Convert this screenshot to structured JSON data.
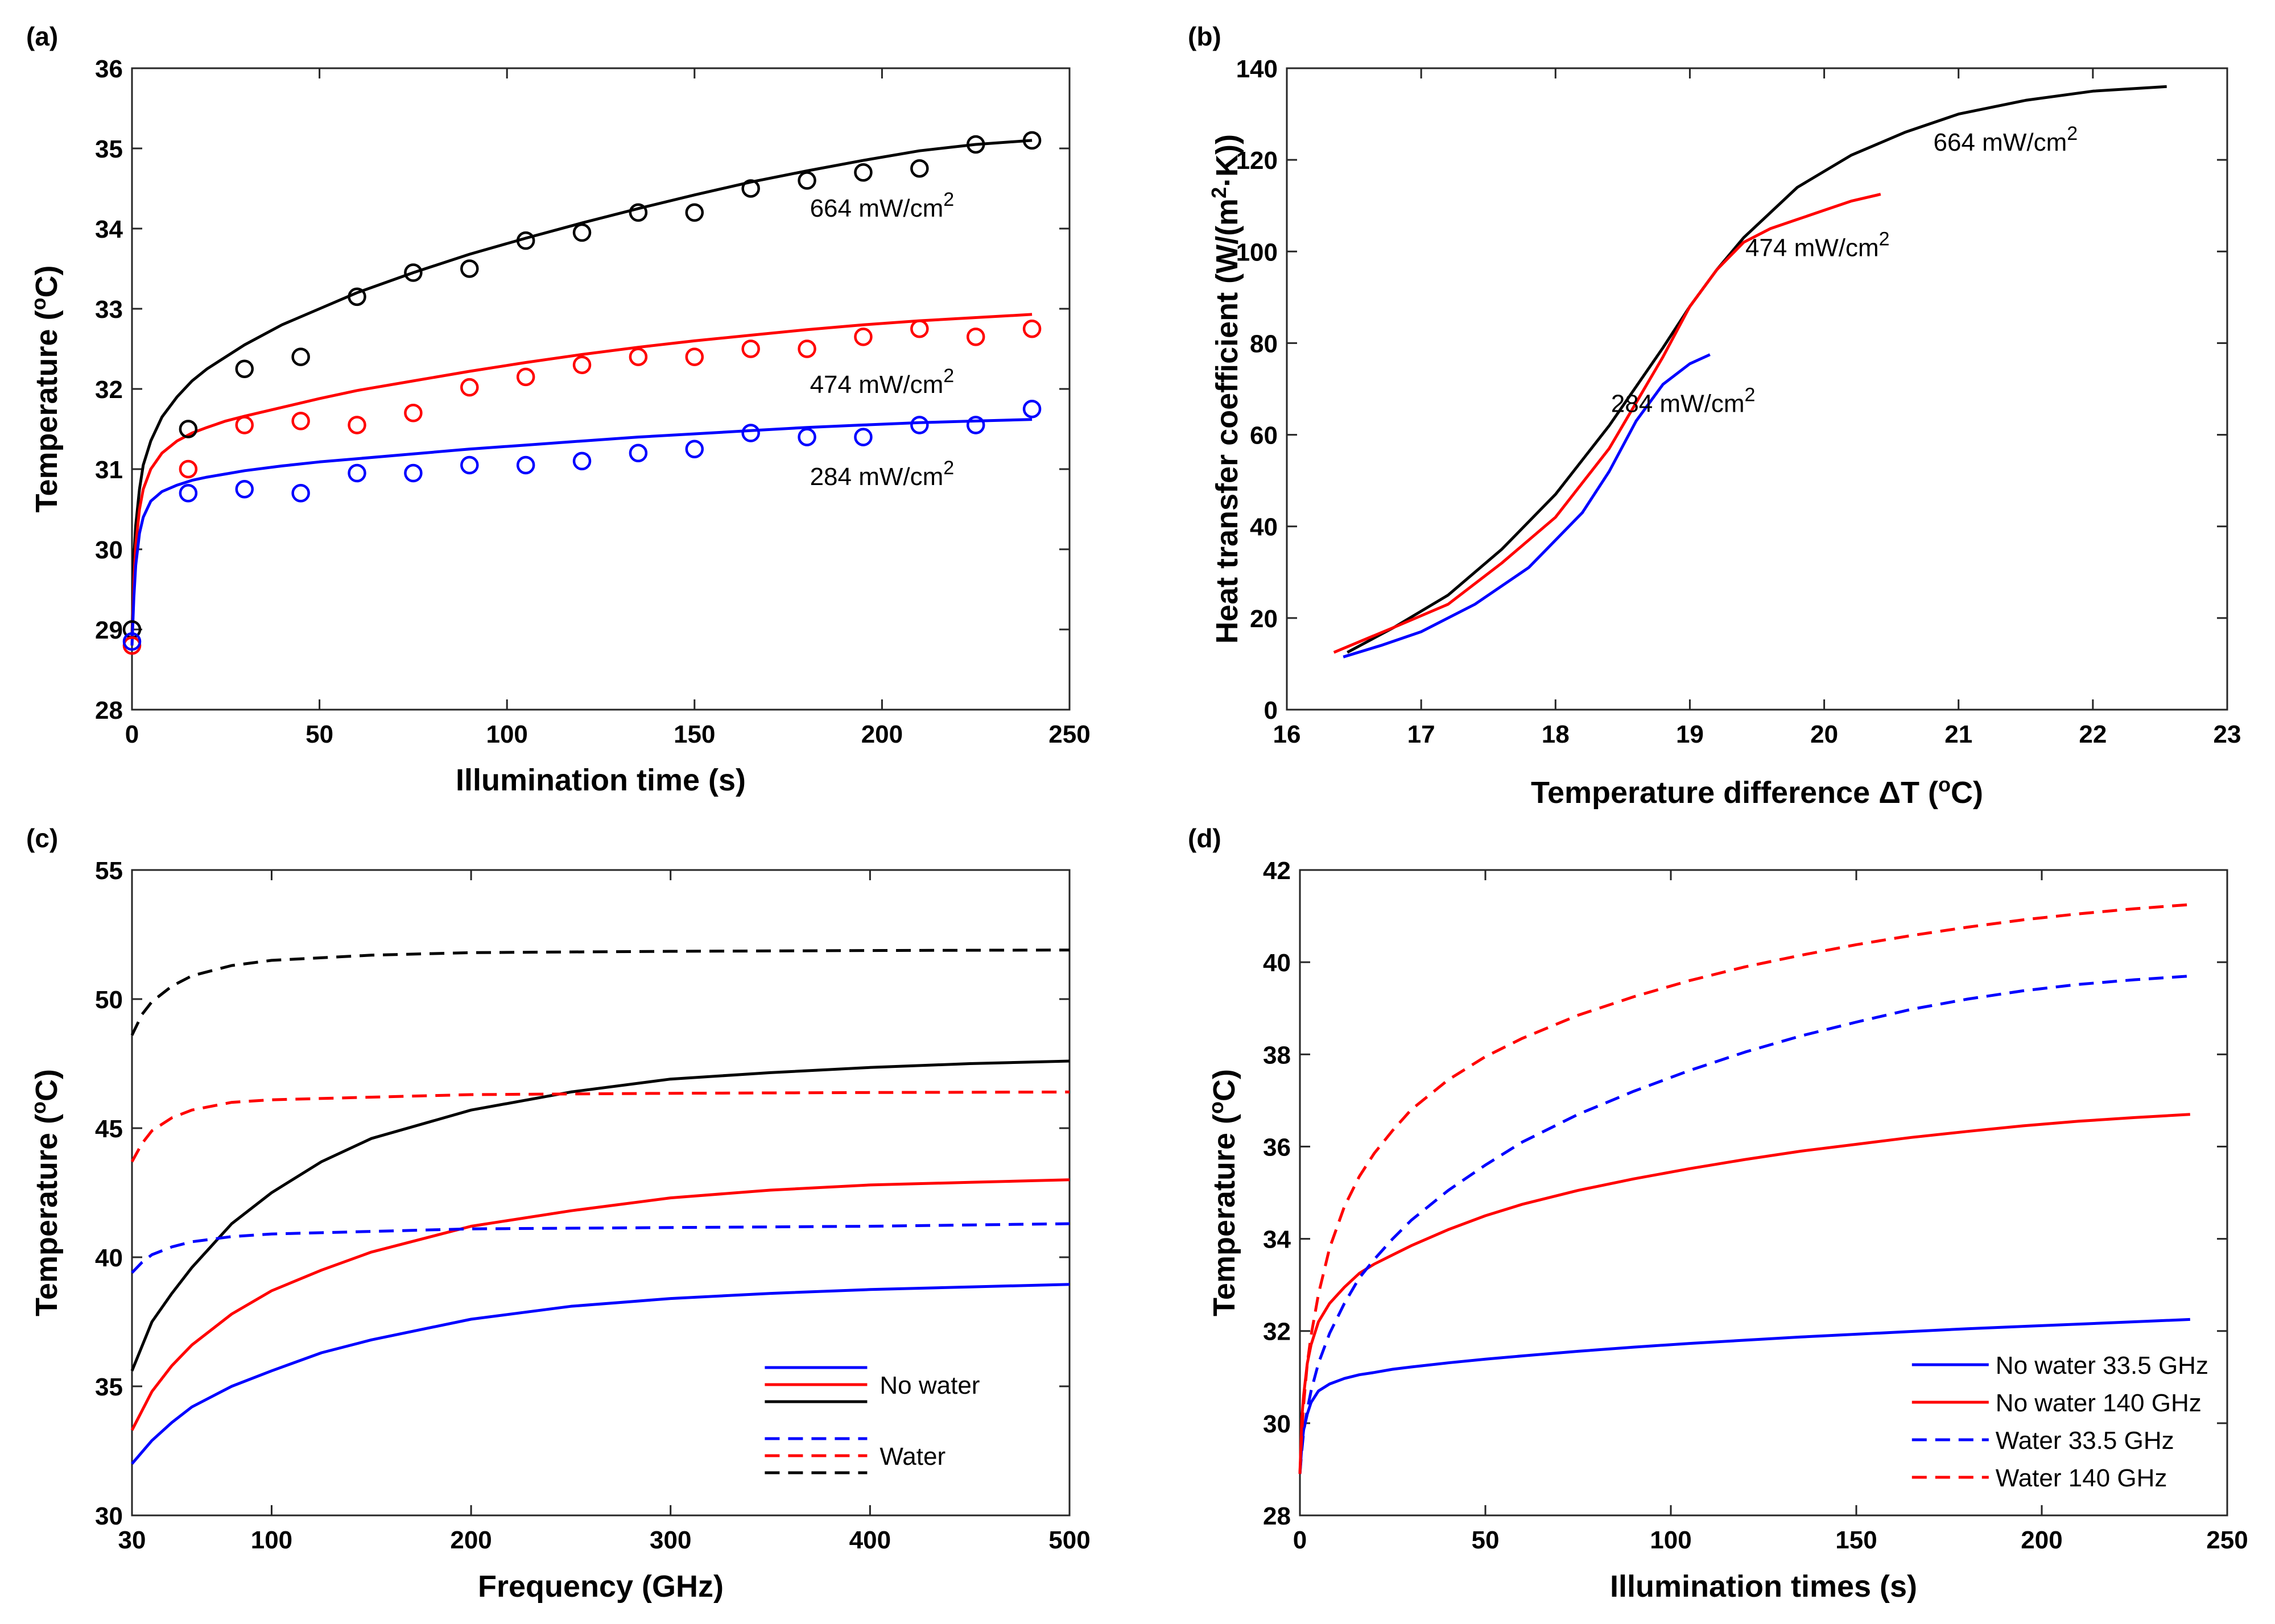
{
  "chart_data": [
    {
      "panel": "(a)",
      "type": "line",
      "xlabel": "Illumination time (s)",
      "ylabel_main": "Temperature (",
      "ylabel_sup": "o",
      "ylabel_tail": "C)",
      "xlim": [
        0,
        250
      ],
      "ylim": [
        28,
        36
      ],
      "xticks": [
        0,
        50,
        100,
        150,
        200,
        250
      ],
      "yticks": [
        28,
        29,
        30,
        31,
        32,
        33,
        34,
        35,
        36
      ],
      "series": [
        {
          "name": "664 mW/cm2",
          "color": "#000000",
          "dash": "solid",
          "x": [
            0,
            0.5,
            1,
            2,
            3,
            5,
            8,
            12,
            16,
            20,
            25,
            30,
            40,
            50,
            60,
            75,
            90,
            105,
            120,
            135,
            150,
            165,
            180,
            195,
            210,
            225,
            240
          ],
          "y": [
            28.9,
            29.9,
            30.3,
            30.75,
            31.05,
            31.35,
            31.65,
            31.9,
            32.1,
            32.25,
            32.4,
            32.55,
            32.8,
            33.0,
            33.2,
            33.45,
            33.68,
            33.88,
            34.07,
            34.25,
            34.42,
            34.58,
            34.72,
            34.85,
            34.97,
            35.05,
            35.1
          ]
        },
        {
          "name": "474 mW/cm2",
          "color": "#ff0000",
          "dash": "solid",
          "x": [
            0,
            0.5,
            1,
            2,
            3,
            5,
            8,
            12,
            16,
            20,
            25,
            30,
            40,
            50,
            60,
            75,
            90,
            105,
            120,
            135,
            150,
            165,
            180,
            195,
            210,
            225,
            240
          ],
          "y": [
            28.8,
            29.6,
            30.05,
            30.5,
            30.75,
            31.0,
            31.2,
            31.35,
            31.45,
            31.52,
            31.6,
            31.66,
            31.77,
            31.88,
            31.98,
            32.1,
            32.22,
            32.33,
            32.43,
            32.52,
            32.6,
            32.67,
            32.74,
            32.8,
            32.85,
            32.89,
            32.93
          ]
        },
        {
          "name": "284 mW/cm2",
          "color": "#0000ff",
          "dash": "solid",
          "x": [
            0,
            0.5,
            1,
            2,
            3,
            5,
            8,
            12,
            16,
            20,
            25,
            30,
            40,
            50,
            60,
            75,
            90,
            105,
            120,
            135,
            150,
            165,
            180,
            195,
            210,
            225,
            240
          ],
          "y": [
            28.8,
            29.4,
            29.8,
            30.2,
            30.4,
            30.6,
            30.72,
            30.8,
            30.86,
            30.9,
            30.94,
            30.98,
            31.04,
            31.09,
            31.13,
            31.19,
            31.25,
            31.3,
            31.35,
            31.4,
            31.44,
            31.48,
            31.52,
            31.55,
            31.58,
            31.6,
            31.62
          ]
        }
      ],
      "markers": [
        {
          "name": "664 mW/cm2 measured",
          "color": "#000000",
          "x": [
            0,
            15,
            30,
            45,
            60,
            75,
            90,
            105,
            120,
            135,
            150,
            165,
            180,
            195,
            210,
            225,
            240
          ],
          "y": [
            29.0,
            31.5,
            32.25,
            32.4,
            33.15,
            33.45,
            33.5,
            33.85,
            33.95,
            34.2,
            34.2,
            34.5,
            34.6,
            34.7,
            34.75,
            35.05,
            35.1
          ]
        },
        {
          "name": "474 mW/cm2 measured",
          "color": "#ff0000",
          "x": [
            0,
            15,
            30,
            45,
            60,
            75,
            90,
            105,
            120,
            135,
            150,
            165,
            180,
            195,
            210,
            225,
            240
          ],
          "y": [
            28.8,
            31.0,
            31.55,
            31.6,
            31.55,
            31.7,
            32.02,
            32.15,
            32.3,
            32.4,
            32.4,
            32.5,
            32.5,
            32.65,
            32.75,
            32.65,
            32.75
          ]
        },
        {
          "name": "284 mW/cm2 measured",
          "color": "#0000ff",
          "x": [
            0,
            15,
            30,
            45,
            60,
            75,
            90,
            105,
            120,
            135,
            150,
            165,
            180,
            195,
            210,
            225,
            240
          ],
          "y": [
            28.85,
            30.7,
            30.75,
            30.7,
            30.95,
            30.95,
            31.05,
            31.05,
            31.1,
            31.2,
            31.25,
            31.45,
            31.4,
            31.4,
            31.55,
            31.55,
            31.75
          ]
        }
      ],
      "annotations": [
        {
          "main": "664 mW/cm",
          "sup": "2",
          "x": 200,
          "y": 34.15
        },
        {
          "main": "474 mW/cm",
          "sup": "2",
          "x": 200,
          "y": 31.95
        },
        {
          "main": "284 mW/cm",
          "sup": "2",
          "x": 200,
          "y": 30.8
        }
      ]
    },
    {
      "panel": "(b)",
      "type": "line",
      "xlabel_main": "Temperature difference ",
      "xlabel_delta": "ΔT (",
      "xlabel_sup": "o",
      "xlabel_tail": "C)",
      "ylabel_main": "Heat transfer coefficient (W/(m",
      "ylabel_sup": "2",
      "ylabel_tail": "·K))",
      "xlim": [
        16,
        23
      ],
      "ylim": [
        0,
        140
      ],
      "xticks": [
        16,
        17,
        18,
        19,
        20,
        21,
        22,
        23
      ],
      "yticks": [
        0,
        20,
        40,
        60,
        80,
        100,
        120,
        140
      ],
      "series": [
        {
          "name": "664 mW/cm2",
          "color": "#000000",
          "dash": "solid",
          "x": [
            16.45,
            16.8,
            17.2,
            17.6,
            18.0,
            18.4,
            18.8,
            19.0,
            19.2,
            19.4,
            19.8,
            20.2,
            20.6,
            21.0,
            21.5,
            22.0,
            22.55
          ],
          "y": [
            12.5,
            18,
            25,
            35,
            47,
            62,
            79,
            88,
            96,
            103,
            114,
            121,
            126,
            130,
            133,
            135,
            136
          ]
        },
        {
          "name": "474 mW/cm2",
          "color": "#ff0000",
          "dash": "solid",
          "x": [
            16.35,
            16.8,
            17.2,
            17.6,
            18.0,
            18.4,
            18.6,
            18.8,
            19.0,
            19.2,
            19.4,
            19.6,
            19.8,
            20.0,
            20.2,
            20.42
          ],
          "y": [
            12.5,
            18,
            23,
            32,
            42,
            57,
            67,
            77,
            88,
            96,
            102,
            105,
            107,
            109,
            111,
            112.5
          ]
        },
        {
          "name": "284 mW/cm2",
          "color": "#0000ff",
          "dash": "solid",
          "x": [
            16.42,
            16.7,
            17.0,
            17.4,
            17.8,
            18.2,
            18.4,
            18.6,
            18.8,
            19.0,
            19.15
          ],
          "y": [
            11.5,
            14,
            17,
            23,
            31,
            43,
            52,
            63,
            71,
            75.5,
            77.5
          ]
        }
      ],
      "annotations": [
        {
          "main": "664 mW/cm",
          "sup": "2",
          "x": 21.35,
          "y": 122
        },
        {
          "main": "474 mW/cm",
          "sup": "2",
          "x": 19.95,
          "y": 99
        },
        {
          "main": "284 mW/cm",
          "sup": "2",
          "x": 18.95,
          "y": 65
        }
      ]
    },
    {
      "panel": "(c)",
      "type": "line",
      "xlabel": "Frequency (GHz)",
      "ylabel_main": "Temperature (",
      "ylabel_sup": "o",
      "ylabel_tail": "C)",
      "xlim": [
        30,
        500
      ],
      "ylim": [
        30,
        55
      ],
      "xticks": [
        30,
        100,
        200,
        300,
        400,
        500
      ],
      "yticks": [
        30,
        35,
        40,
        45,
        50,
        55
      ],
      "series": [
        {
          "name": "No water (black)",
          "color": "#000000",
          "dash": "solid",
          "x": [
            30,
            40,
            50,
            60,
            80,
            100,
            125,
            150,
            200,
            250,
            300,
            350,
            400,
            450,
            500
          ],
          "y": [
            35.6,
            37.5,
            38.6,
            39.6,
            41.3,
            42.5,
            43.7,
            44.6,
            45.7,
            46.4,
            46.9,
            47.15,
            47.35,
            47.5,
            47.6
          ]
        },
        {
          "name": "No water (red)",
          "color": "#ff0000",
          "dash": "solid",
          "x": [
            30,
            40,
            50,
            60,
            80,
            100,
            125,
            150,
            200,
            250,
            300,
            350,
            400,
            450,
            500
          ],
          "y": [
            33.3,
            34.8,
            35.8,
            36.6,
            37.8,
            38.7,
            39.5,
            40.2,
            41.2,
            41.8,
            42.3,
            42.6,
            42.8,
            42.9,
            43.0
          ]
        },
        {
          "name": "No water (blue)",
          "color": "#0000ff",
          "dash": "solid",
          "x": [
            30,
            40,
            50,
            60,
            80,
            100,
            125,
            150,
            200,
            250,
            300,
            350,
            400,
            450,
            500
          ],
          "y": [
            32.0,
            32.9,
            33.6,
            34.2,
            35.0,
            35.6,
            36.3,
            36.8,
            37.6,
            38.1,
            38.4,
            38.6,
            38.75,
            38.85,
            38.95
          ]
        },
        {
          "name": "Water (black)",
          "color": "#000000",
          "dash": "dashed",
          "x": [
            30,
            35,
            40,
            50,
            60,
            80,
            100,
            150,
            200,
            300,
            400,
            500
          ],
          "y": [
            48.6,
            49.4,
            49.9,
            50.5,
            50.9,
            51.3,
            51.5,
            51.7,
            51.8,
            51.85,
            51.88,
            51.9
          ]
        },
        {
          "name": "Water (red)",
          "color": "#ff0000",
          "dash": "dashed",
          "x": [
            30,
            35,
            40,
            50,
            60,
            80,
            100,
            150,
            200,
            300,
            400,
            500
          ],
          "y": [
            43.7,
            44.4,
            44.9,
            45.4,
            45.7,
            46.0,
            46.1,
            46.2,
            46.3,
            46.35,
            46.38,
            46.4
          ]
        },
        {
          "name": "Water (blue)",
          "color": "#0000ff",
          "dash": "dashed",
          "x": [
            30,
            35,
            40,
            50,
            60,
            80,
            100,
            150,
            200,
            300,
            400,
            500
          ],
          "y": [
            39.4,
            39.8,
            40.1,
            40.4,
            40.6,
            40.8,
            40.9,
            41.0,
            41.1,
            41.15,
            41.2,
            41.3
          ]
        }
      ],
      "legend": {
        "position": "bottom-right",
        "groups": [
          {
            "label": "No water",
            "colors": [
              "#0000ff",
              "#ff0000",
              "#000000"
            ],
            "dash": "solid"
          },
          {
            "label": "Water",
            "colors": [
              "#0000ff",
              "#ff0000",
              "#000000"
            ],
            "dash": "dashed"
          }
        ]
      }
    },
    {
      "panel": "(d)",
      "type": "line",
      "xlabel": "Illumination times (s)",
      "ylabel_main": "Temperature (",
      "ylabel_sup": "o",
      "ylabel_tail": "C)",
      "xlim": [
        0,
        250
      ],
      "ylim": [
        28,
        42
      ],
      "xticks": [
        0,
        50,
        100,
        150,
        200,
        250
      ],
      "yticks": [
        28,
        30,
        32,
        34,
        36,
        38,
        40,
        42
      ],
      "series": [
        {
          "name": "No water 33.5 GHz",
          "color": "#0000ff",
          "dash": "solid",
          "x": [
            0,
            0.5,
            1,
            2,
            3,
            5,
            8,
            12,
            16,
            20,
            25,
            30,
            40,
            50,
            60,
            75,
            90,
            105,
            120,
            135,
            150,
            165,
            180,
            195,
            210,
            225,
            240
          ],
          "y": [
            28.9,
            29.5,
            29.85,
            30.2,
            30.45,
            30.7,
            30.85,
            30.97,
            31.05,
            31.1,
            31.17,
            31.22,
            31.31,
            31.39,
            31.46,
            31.56,
            31.65,
            31.73,
            31.8,
            31.87,
            31.93,
            31.99,
            32.05,
            32.1,
            32.15,
            32.2,
            32.25
          ]
        },
        {
          "name": "No water 140 GHz",
          "color": "#ff0000",
          "dash": "solid",
          "x": [
            0,
            0.5,
            1,
            2,
            3,
            5,
            8,
            12,
            16,
            20,
            25,
            30,
            40,
            50,
            60,
            75,
            90,
            105,
            120,
            135,
            150,
            165,
            180,
            195,
            210,
            225,
            240
          ],
          "y": [
            28.9,
            30.1,
            30.6,
            31.3,
            31.7,
            32.2,
            32.6,
            32.95,
            33.25,
            33.45,
            33.65,
            33.85,
            34.2,
            34.5,
            34.75,
            35.05,
            35.3,
            35.52,
            35.72,
            35.9,
            36.05,
            36.2,
            36.33,
            36.45,
            36.55,
            36.63,
            36.7
          ]
        },
        {
          "name": "Water 33.5 GHz",
          "color": "#0000ff",
          "dash": "dashed",
          "x": [
            0,
            0.5,
            1,
            2,
            3,
            5,
            8,
            12,
            16,
            20,
            25,
            30,
            40,
            50,
            60,
            75,
            90,
            105,
            120,
            135,
            150,
            165,
            180,
            195,
            210,
            225,
            240
          ],
          "y": [
            28.9,
            29.4,
            29.8,
            30.3,
            30.7,
            31.3,
            31.95,
            32.6,
            33.15,
            33.55,
            34.0,
            34.4,
            35.05,
            35.6,
            36.1,
            36.7,
            37.2,
            37.65,
            38.05,
            38.4,
            38.7,
            38.98,
            39.2,
            39.38,
            39.52,
            39.62,
            39.7
          ]
        },
        {
          "name": "Water 140 GHz",
          "color": "#ff0000",
          "dash": "dashed",
          "x": [
            0,
            0.5,
            1,
            2,
            3,
            5,
            8,
            12,
            16,
            20,
            25,
            30,
            40,
            50,
            60,
            75,
            90,
            105,
            120,
            135,
            150,
            165,
            180,
            195,
            210,
            225,
            240
          ],
          "y": [
            28.9,
            29.8,
            30.4,
            31.3,
            31.9,
            32.8,
            33.8,
            34.7,
            35.35,
            35.85,
            36.35,
            36.8,
            37.45,
            37.95,
            38.35,
            38.85,
            39.25,
            39.6,
            39.9,
            40.15,
            40.38,
            40.58,
            40.76,
            40.92,
            41.05,
            41.16,
            41.25
          ]
        }
      ],
      "legend": {
        "position": "bottom-right",
        "items": [
          {
            "label": "No water 33.5 GHz",
            "color": "#0000ff",
            "dash": "solid"
          },
          {
            "label": "No water 140 GHz",
            "color": "#ff0000",
            "dash": "solid"
          },
          {
            "label": "Water 33.5 GHz",
            "color": "#0000ff",
            "dash": "dashed"
          },
          {
            "label": "Water 140 GHz",
            "color": "#ff0000",
            "dash": "dashed"
          }
        ]
      }
    }
  ]
}
